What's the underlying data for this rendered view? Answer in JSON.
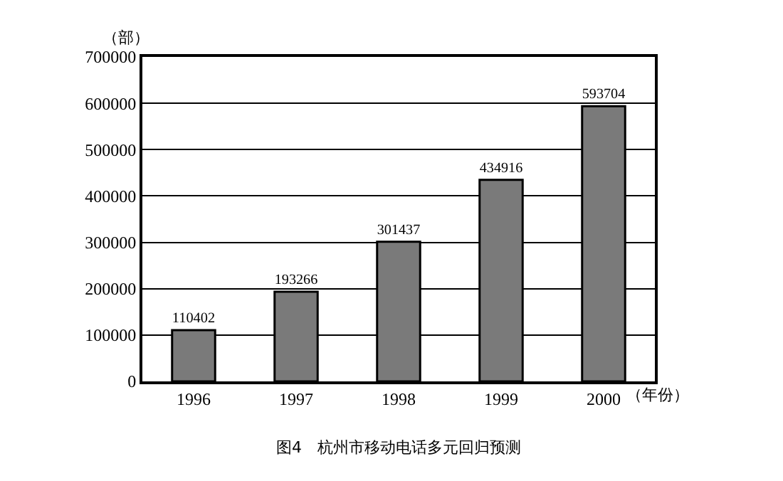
{
  "chart_data": {
    "type": "bar",
    "title": "图4　杭州市移动电话多元回归预测",
    "xlabel": "（年份）",
    "ylabel": "（部）",
    "categories": [
      "1996",
      "1997",
      "1998",
      "1999",
      "2000"
    ],
    "values": [
      110402,
      193266,
      301437,
      434916,
      593704
    ],
    "color": "#7a7a7a",
    "ylim": [
      0,
      700000
    ],
    "yticks": [
      0,
      100000,
      200000,
      300000,
      400000,
      500000,
      600000,
      700000
    ],
    "grid": "y",
    "data_labels": true
  }
}
